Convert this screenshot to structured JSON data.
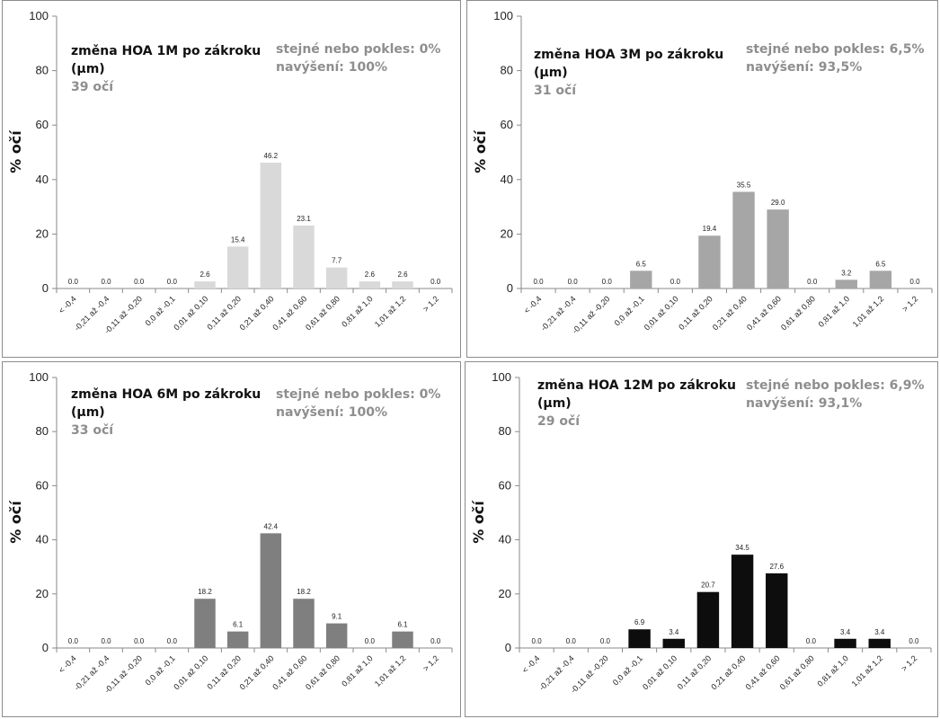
{
  "chart_data": [
    {
      "type": "bar",
      "ylabel": "% očí",
      "ylim": [
        0,
        100
      ],
      "yticks": [
        0,
        20,
        40,
        60,
        80,
        100
      ],
      "grid": false,
      "color": "#d9d9d9",
      "title": "změna HOA 1M po zákroku\n(µm)",
      "subtitle": "39 očí",
      "annotation": "stejné nebo pokles: 0%\nnavýšení: 100%",
      "categories": [
        "< -0,4",
        "-0,21 až -0,4",
        "-0,11 až -0,20",
        "0,0 až -0,1",
        "0,01 až 0,10",
        "0,11 až 0,20",
        "0,21 až 0,40",
        "0,41 až 0,60",
        "0,61 až 0,80",
        "0,81 až 1,0",
        "1,01 až 1,2",
        "> 1,2"
      ],
      "values": [
        0.0,
        0.0,
        0.0,
        0.0,
        2.6,
        15.4,
        46.2,
        23.1,
        7.7,
        2.6,
        2.6,
        0.0
      ],
      "data_labels": [
        "0.0",
        "0.0",
        "0.0",
        "0.0",
        "2.6",
        "15.4",
        "46.2",
        "23.1",
        "7.7",
        "2.6",
        "2.6",
        "0.0"
      ]
    },
    {
      "type": "bar",
      "ylabel": "% očí",
      "ylim": [
        0,
        100
      ],
      "yticks": [
        0,
        20,
        40,
        60,
        80,
        100
      ],
      "grid": false,
      "color": "#a6a6a6",
      "title": "změna HOA 3M po zákroku\n(µm)",
      "subtitle": "31 očí",
      "annotation": "stejné nebo pokles: 6,5%\nnavýšení: 93,5%",
      "categories": [
        "< -0,4",
        "-0,21 až -0,4",
        "-0,11 až -0,20",
        "0,0 až -0,1",
        "0,01 až 0,10",
        "0,11 až 0,20",
        "0,21 až 0,40",
        "0,41 až 0,60",
        "0,61 až 0,80",
        "0,81 až 1,0",
        "1,01 až 1,2",
        "> 1,2"
      ],
      "values": [
        0.0,
        0.0,
        0.0,
        6.5,
        0.0,
        19.4,
        35.5,
        29.0,
        0.0,
        3.2,
        6.5,
        0.0
      ],
      "data_labels": [
        "0.0",
        "0.0",
        "0.0",
        "6.5",
        "0.0",
        "19.4",
        "35.5",
        "29.0",
        "0.0",
        "3.2",
        "6.5",
        "0.0"
      ]
    },
    {
      "type": "bar",
      "ylabel": "% očí",
      "ylim": [
        0,
        100
      ],
      "yticks": [
        0,
        20,
        40,
        60,
        80,
        100
      ],
      "grid": false,
      "color": "#7f7f7f",
      "title": "změna HOA 6M po zákroku\n(µm)",
      "subtitle": "33 očí",
      "annotation": "stejné nebo pokles: 0%\nnavýšení: 100%",
      "categories": [
        "< -0,4",
        "-0,21 až -0,4",
        "-0,11 až -0,20",
        "0,0 až -0,1",
        "0,01 až 0,10",
        "0,11 až 0,20",
        "0,21 až 0,40",
        "0,41 až 0,60",
        "0,61 až 0,80",
        "0,81 až 1,0",
        "1,01 až 1,2",
        "> 1,2"
      ],
      "values": [
        0.0,
        0.0,
        0.0,
        0.0,
        18.2,
        6.1,
        42.4,
        18.2,
        9.1,
        0.0,
        6.1,
        0.0
      ],
      "data_labels": [
        "0.0",
        "0.0",
        "0.0",
        "0.0",
        "18.2",
        "6.1",
        "42.4",
        "18.2",
        "9.1",
        "0.0",
        "6.1",
        "0.0"
      ]
    },
    {
      "type": "bar",
      "ylabel": "% očí",
      "ylim": [
        0,
        100
      ],
      "yticks": [
        0,
        20,
        40,
        60,
        80,
        100
      ],
      "grid": false,
      "color": "#0d0d0d",
      "title": "změna HOA 12M po zákroku\n(µm)",
      "subtitle": "29 očí",
      "annotation": "stejné nebo pokles: 6,9%\nnavýšení: 93,1%",
      "categories": [
        "< -0,4",
        "-0,21 až -0,4",
        "-0,11 až -0,20",
        "0,0 až -0,1",
        "0,01 až 0,10",
        "0,11 až 0,20",
        "0,21 až 0,40",
        "0,41 až 0,60",
        "0,61 až 0,80",
        "0,81 až 1,0",
        "1,01 až 1,2",
        "> 1,2"
      ],
      "values": [
        0.0,
        0.0,
        0.0,
        6.9,
        3.4,
        20.7,
        34.5,
        27.6,
        0.0,
        3.4,
        3.4,
        0.0
      ],
      "data_labels": [
        "0.0",
        "0.0",
        "0.0",
        "6.9",
        "3.4",
        "20.7",
        "34.5",
        "27.6",
        "0.0",
        "3.4",
        "3.4",
        "0.0"
      ]
    }
  ]
}
